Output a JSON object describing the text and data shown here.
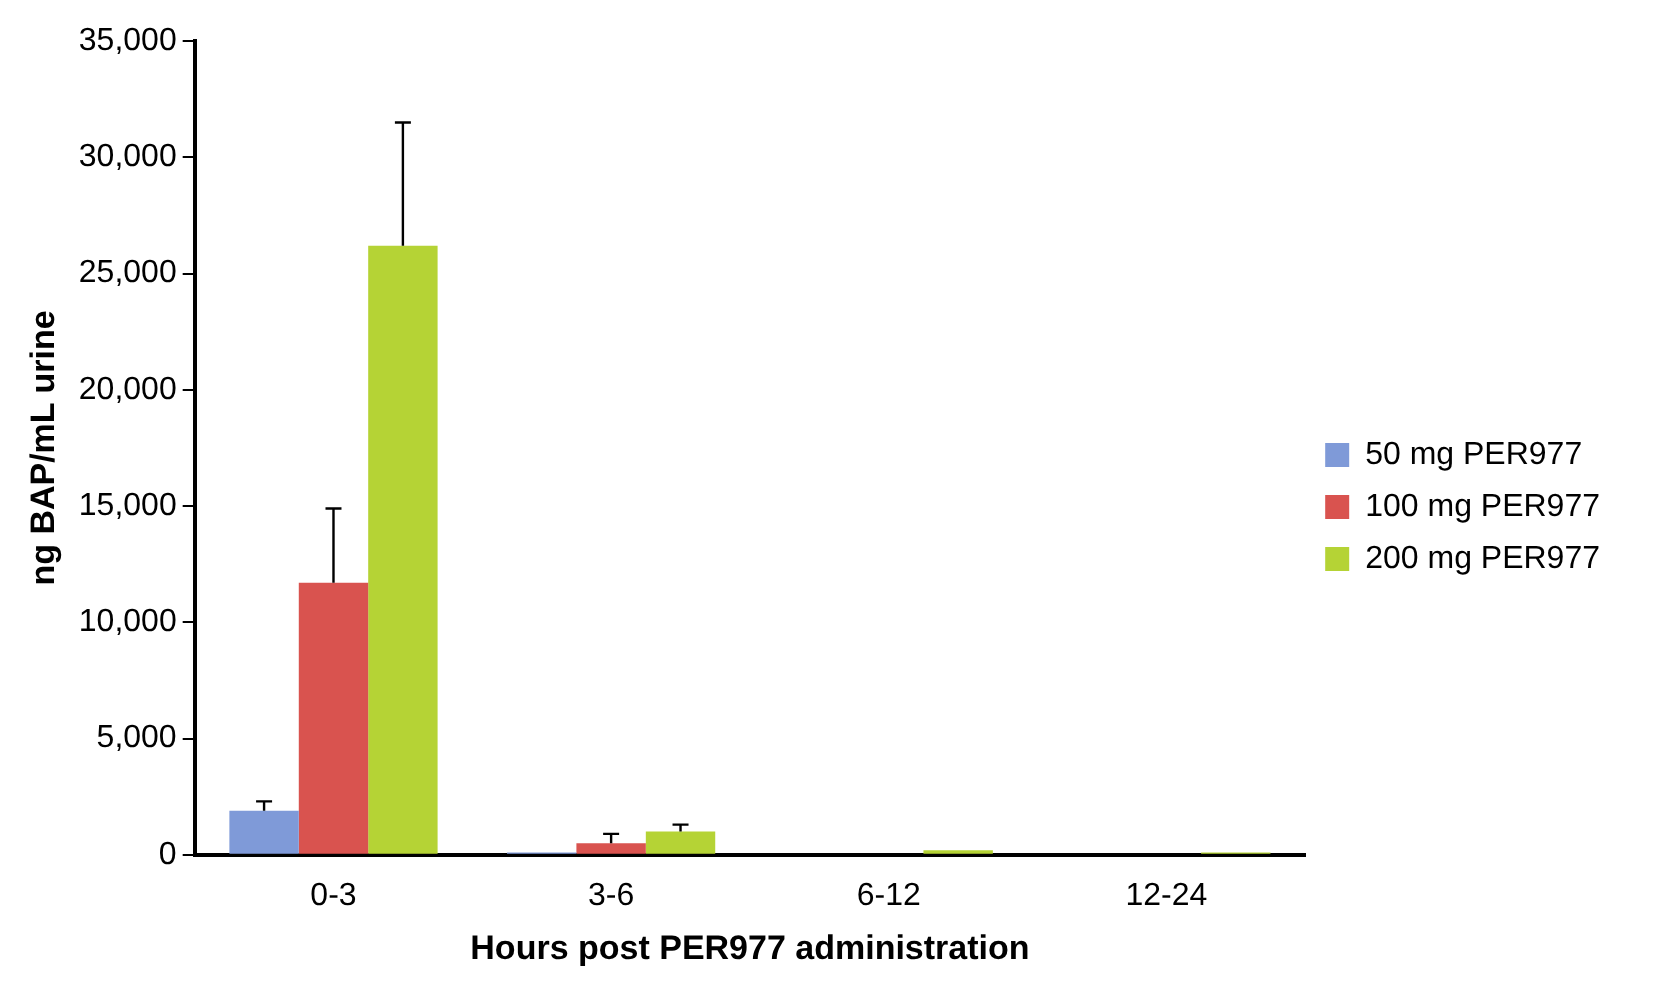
{
  "chart_data": {
    "type": "bar",
    "xlabel": "Hours post PER977 administration",
    "ylabel": "ng BAP/mL urine",
    "categories": [
      "0-3",
      "3-6",
      "6-12",
      "12-24"
    ],
    "series": [
      {
        "name": "50 mg PER977",
        "color": "#7f9ad8",
        "values": [
          1900,
          100,
          0,
          0
        ],
        "errors": [
          400,
          null,
          null,
          null
        ]
      },
      {
        "name": "100 mg PER977",
        "color": "#d9534f",
        "values": [
          11700,
          500,
          0,
          0
        ],
        "errors": [
          3200,
          400,
          null,
          null
        ]
      },
      {
        "name": "200 mg PER977",
        "color": "#b5d335",
        "values": [
          26200,
          1000,
          200,
          100
        ],
        "errors": [
          5300,
          300,
          null,
          null
        ]
      }
    ],
    "ylim": [
      0,
      35000
    ],
    "yticks": [
      {
        "value": 0,
        "label": "0"
      },
      {
        "value": 5000,
        "label": "5,000"
      },
      {
        "value": 10000,
        "label": "10,000"
      },
      {
        "value": 15000,
        "label": "15,000"
      },
      {
        "value": 20000,
        "label": "20,000"
      },
      {
        "value": 25000,
        "label": "25,000"
      },
      {
        "value": 30000,
        "label": "30,000"
      },
      {
        "value": 35000,
        "label": "35,000"
      }
    ],
    "grid": false,
    "legend": "right"
  }
}
